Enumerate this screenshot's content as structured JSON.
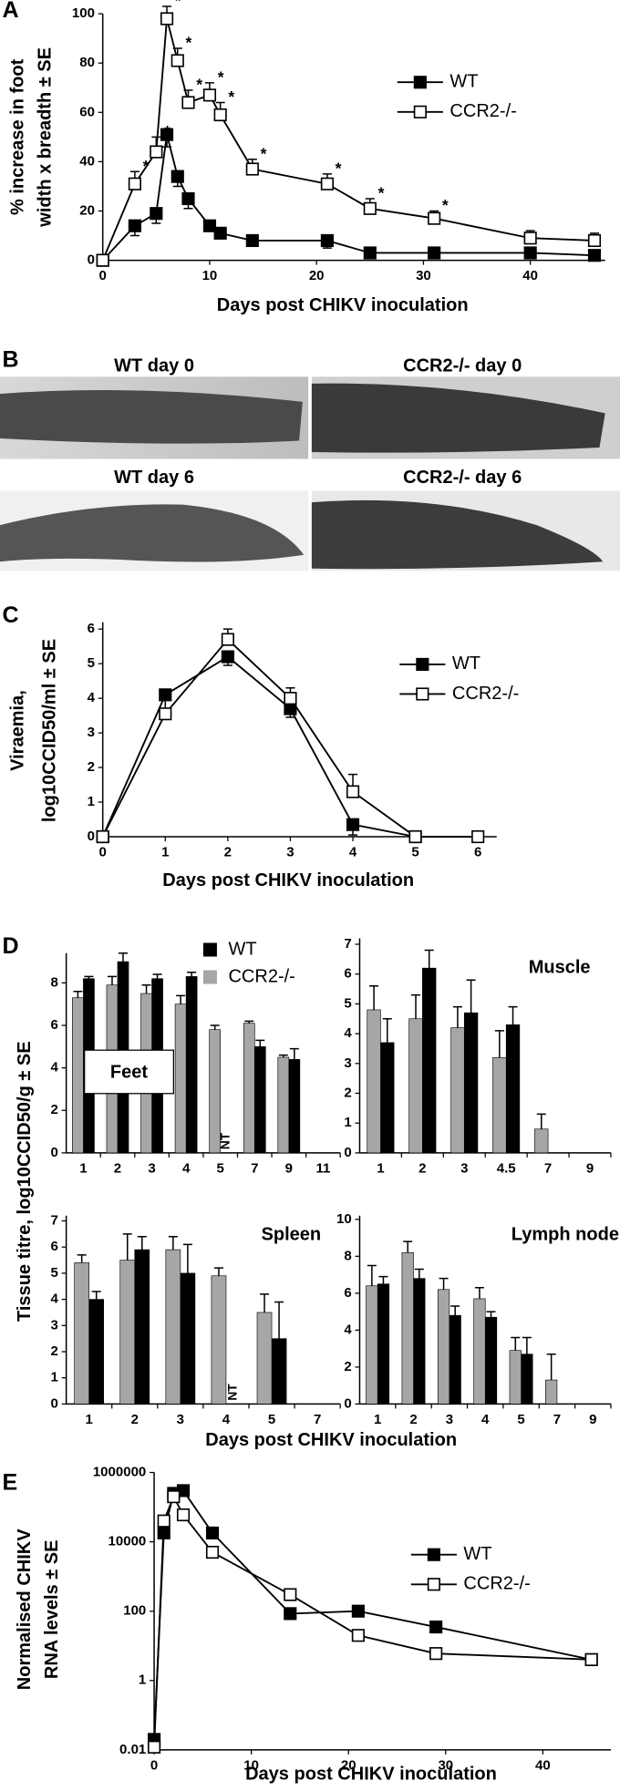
{
  "chart_data": [
    {
      "type": "line",
      "panel_label": "A",
      "y_label": [
        "% increase in  foot",
        "width x breadth  ± SE"
      ],
      "x_label": "Days post CHIKV inoculation",
      "x": [
        0,
        3,
        5,
        6,
        7,
        8,
        10,
        11,
        14,
        21,
        25,
        31,
        40,
        46
      ],
      "xlim": [
        0,
        47
      ],
      "xticks": [
        0,
        10,
        20,
        30,
        40
      ],
      "ylim": [
        0,
        100
      ],
      "yticks": [
        0,
        20,
        40,
        60,
        80,
        100
      ],
      "series": [
        {
          "name": "WT",
          "color": "#000000",
          "marker_fill": "#000000",
          "values": [
            0,
            14,
            19,
            51,
            34,
            25,
            14,
            11,
            8,
            8,
            3,
            3,
            3,
            2
          ],
          "errors": [
            1,
            4,
            4,
            5,
            4,
            4,
            2,
            2,
            2,
            3,
            2,
            1,
            1,
            2
          ]
        },
        {
          "name": "CCR2-/-",
          "color": "#000000",
          "marker_fill": "#ffffff",
          "values": [
            0,
            31,
            44,
            98,
            81,
            64,
            67,
            59,
            37,
            31,
            21,
            17,
            9,
            8
          ],
          "errors": [
            1,
            5,
            6,
            5,
            5,
            5,
            5,
            5,
            4,
            4,
            4,
            3,
            3,
            3
          ],
          "point_labels": [
            null,
            "*",
            "*",
            "*",
            "*",
            "*",
            "*",
            "*",
            "*",
            "*",
            "*",
            "*",
            null,
            null
          ]
        }
      ]
    },
    {
      "type": "line",
      "panel_label": "C",
      "y_label": [
        "Viraemia,",
        "log10CCID50/ml ± SE"
      ],
      "x_label": "Days post CHIKV inoculation",
      "x": [
        0,
        1,
        2,
        3,
        4,
        5,
        6
      ],
      "xlim": [
        0,
        6.3
      ],
      "xticks": [
        0,
        1,
        2,
        3,
        4,
        5,
        6
      ],
      "ylim": [
        0,
        6.2
      ],
      "yticks": [
        0,
        1,
        2,
        3,
        4,
        5,
        6
      ],
      "series": [
        {
          "name": "WT",
          "color": "#000000",
          "marker_fill": "#000000",
          "values": [
            0,
            4.1,
            5.2,
            3.7,
            0.35,
            0,
            null
          ],
          "errors": [
            0.05,
            0.4,
            0.25,
            0.25,
            0.3,
            0.05,
            null
          ]
        },
        {
          "name": "CCR2-/-",
          "color": "#000000",
          "marker_fill": "#ffffff",
          "values": [
            0,
            3.55,
            5.7,
            4.0,
            1.3,
            0,
            0
          ],
          "errors": [
            0.05,
            0.45,
            0.3,
            0.3,
            0.5,
            0.05,
            0.05
          ]
        }
      ]
    },
    {
      "type": "bar",
      "panel_label": "D",
      "title": "Feet",
      "categories": [
        "1",
        "2",
        "3",
        "4",
        "5",
        "7",
        "9",
        "11"
      ],
      "ylim": [
        0,
        9.4
      ],
      "yticks": [
        0,
        2,
        4,
        6,
        8
      ],
      "series": [
        {
          "name": "WT",
          "color": "#000000",
          "values": [
            8.2,
            9.0,
            8.2,
            8.3,
            null,
            5.0,
            4.4,
            null
          ],
          "errors": [
            0.1,
            0.4,
            0.2,
            0.2,
            null,
            0.3,
            0.5,
            null
          ],
          "point_labels": [
            null,
            null,
            null,
            null,
            "NT",
            null,
            null,
            null
          ]
        },
        {
          "name": "CCR2-/-",
          "color": "#a6a6a6",
          "values": [
            7.3,
            7.9,
            7.5,
            7.0,
            5.8,
            6.1,
            4.5,
            null
          ],
          "errors": [
            0.3,
            0.4,
            0.4,
            0.4,
            0.2,
            0.1,
            0.1,
            null
          ]
        }
      ]
    },
    {
      "type": "bar",
      "title": "Muscle",
      "categories": [
        "1",
        "2",
        "3",
        "4.5",
        "7",
        "9"
      ],
      "ylim": [
        0,
        7.2
      ],
      "yticks": [
        0,
        1,
        2,
        3,
        4,
        5,
        6,
        7
      ],
      "series": [
        {
          "name": "WT",
          "color": "#000000",
          "values": [
            3.7,
            6.2,
            4.7,
            4.3,
            null,
            null
          ],
          "errors": [
            0.8,
            0.6,
            1.1,
            0.6,
            null,
            null
          ]
        },
        {
          "name": "CCR2-/-",
          "color": "#a6a6a6",
          "values": [
            4.8,
            4.5,
            4.2,
            3.2,
            0.8,
            null
          ],
          "errors": [
            0.8,
            0.8,
            0.7,
            0.9,
            0.5,
            null
          ]
        }
      ]
    },
    {
      "type": "bar",
      "title": "Spleen",
      "categories": [
        "1",
        "2",
        "3",
        "4",
        "5",
        "7"
      ],
      "ylim": [
        0,
        7.2
      ],
      "yticks": [
        0,
        1,
        2,
        3,
        4,
        5,
        6,
        7
      ],
      "series": [
        {
          "name": "WT",
          "color": "#000000",
          "values": [
            4.0,
            5.9,
            5.0,
            null,
            2.5,
            null
          ],
          "errors": [
            0.3,
            0.5,
            1.1,
            null,
            1.4,
            null
          ],
          "point_labels": [
            null,
            null,
            null,
            "NT",
            null,
            null
          ]
        },
        {
          "name": "CCR2-/-",
          "color": "#a6a6a6",
          "values": [
            5.4,
            5.5,
            5.9,
            4.9,
            3.5,
            null
          ],
          "errors": [
            0.3,
            1.0,
            0.5,
            0.3,
            0.7,
            null
          ]
        }
      ]
    },
    {
      "type": "bar",
      "title": "Lymph node",
      "categories": [
        "1",
        "2",
        "3",
        "4",
        "5",
        "7",
        "9"
      ],
      "ylim": [
        0,
        10.2
      ],
      "yticks": [
        0,
        2,
        4,
        6,
        8,
        10
      ],
      "series": [
        {
          "name": "WT",
          "color": "#000000",
          "values": [
            6.5,
            6.8,
            4.8,
            4.7,
            2.7,
            null,
            null
          ],
          "errors": [
            0.4,
            0.5,
            0.5,
            0.3,
            0.9,
            null,
            null
          ]
        },
        {
          "name": "CCR2-/-",
          "color": "#a6a6a6",
          "values": [
            6.4,
            8.2,
            6.2,
            5.7,
            2.9,
            1.3,
            null
          ],
          "errors": [
            1.1,
            0.6,
            0.6,
            0.6,
            0.7,
            1.4,
            null
          ]
        }
      ]
    },
    {
      "type": "line",
      "panel_label": "E",
      "y_label": [
        "Normalised CHIKV",
        "RNA levels ± SE"
      ],
      "x_label": "Days post CHIKV inoculation",
      "log_y": true,
      "x": [
        0,
        1,
        2,
        3,
        6,
        14,
        21,
        29,
        45
      ],
      "xlim": [
        0,
        47
      ],
      "xticks": [
        0,
        10,
        20,
        30,
        40
      ],
      "ylim": [
        0.01,
        1000000
      ],
      "yticks": [
        0.01,
        1,
        100,
        10000,
        1000000
      ],
      "series": [
        {
          "name": "WT",
          "color": "#000000",
          "marker_fill": "#000000",
          "values": [
            0.02,
            18000,
            250000,
            300000,
            18000,
            85,
            100,
            35,
            4
          ]
        },
        {
          "name": "CCR2-/-",
          "color": "#000000",
          "marker_fill": "#ffffff",
          "values": [
            0.012,
            40000,
            200000,
            60000,
            5000,
            300,
            20,
            6,
            4
          ]
        }
      ]
    }
  ],
  "panel_d": {
    "y_label": "Tissue titre, log10CCID50/g ± SE",
    "x_label": "Days post CHIKV inoculation"
  },
  "images": {
    "label": "B",
    "panels": [
      {
        "title": "WT day 0"
      },
      {
        "title": "CCR2-/- day 0"
      },
      {
        "title": "WT day 6"
      },
      {
        "title": "CCR2-/- day 6"
      }
    ]
  }
}
